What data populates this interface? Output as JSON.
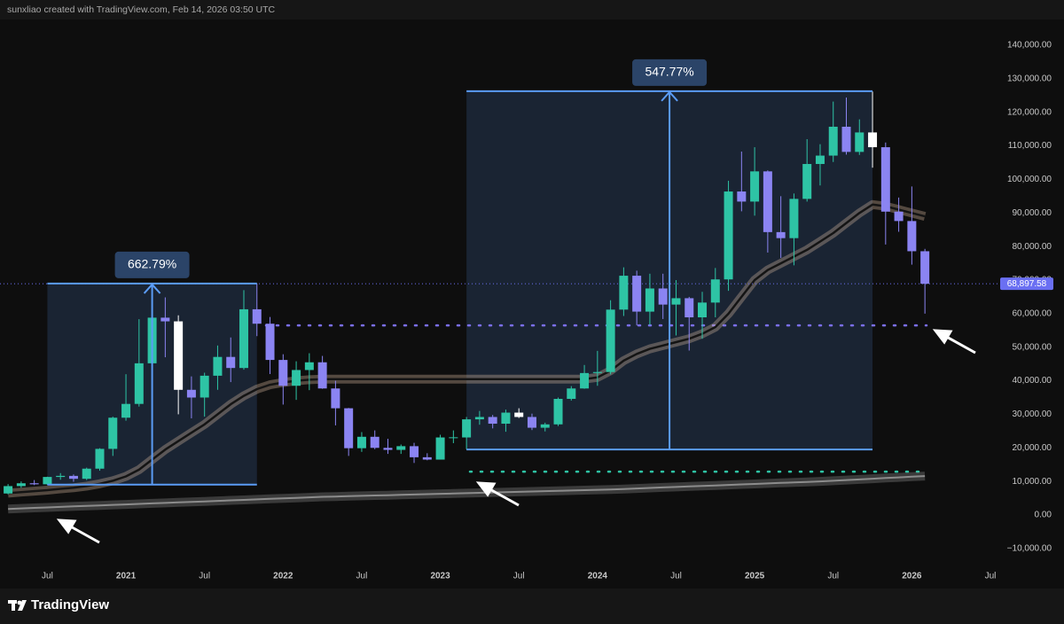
{
  "header": "sunxliao created with TradingView.com, Feb 14, 2026 03:50 UTC",
  "brand": "TradingView",
  "chart_data": {
    "type": "candlestick",
    "categories": [
      null,
      null,
      null,
      "Jul",
      null,
      null,
      null,
      null,
      null,
      "2021",
      null,
      null,
      null,
      null,
      null,
      "Jul",
      null,
      null,
      null,
      null,
      null,
      "2022",
      null,
      null,
      null,
      null,
      null,
      "Jul",
      null,
      null,
      null,
      null,
      null,
      "2023",
      null,
      null,
      null,
      null,
      null,
      "Jul",
      null,
      null,
      null,
      null,
      null,
      "2024",
      null,
      null,
      null,
      null,
      null,
      "Jul",
      null,
      null,
      null,
      null,
      null,
      "2025",
      null,
      null,
      null,
      null,
      null,
      "Jul",
      null,
      null,
      null,
      null,
      null,
      "2026",
      null,
      null,
      null,
      null,
      null,
      "Jul"
    ],
    "open": [
      6400,
      8600,
      9450,
      9140,
      11330,
      11650,
      10780,
      13800,
      19700,
      28990,
      33100,
      45200,
      58800,
      57700,
      37300,
      35000,
      41500,
      47100,
      43800,
      61300,
      57000,
      46200,
      38500,
      43200,
      45500,
      37700,
      31800,
      19900,
      23300,
      20000,
      19400,
      20500,
      17200,
      16500,
      23100,
      23100,
      28500,
      29200,
      27200,
      30500,
      29200,
      26000,
      27000,
      34600,
      37700,
      42300,
      42600,
      61200,
      71300,
      60600,
      67500,
      62700,
      64600,
      58900,
      63300,
      70200,
      96400,
      93400,
      102400,
      84300,
      82500,
      94200,
      104600,
      107100,
      115700,
      108200,
      114000,
      109600,
      90400,
      87600,
      78600,
      null,
      null,
      null,
      null,
      null
    ],
    "high": [
      9200,
      10000,
      10400,
      11400,
      12470,
      12070,
      14100,
      19900,
      29300,
      41950,
      58350,
      61800,
      64850,
      59500,
      41300,
      42400,
      50500,
      52900,
      67000,
      69000,
      59000,
      47900,
      45800,
      48200,
      47400,
      40000,
      31900,
      24700,
      25200,
      22700,
      21000,
      21500,
      18400,
      23900,
      25200,
      29200,
      31000,
      29800,
      31400,
      31800,
      30200,
      27500,
      35000,
      38400,
      44700,
      48900,
      64000,
      73800,
      72800,
      71900,
      71900,
      70000,
      65000,
      66500,
      73600,
      99600,
      108300,
      109600,
      102700,
      95000,
      95800,
      112000,
      110500,
      123200,
      124400,
      117900,
      126200,
      111000,
      94600,
      97900,
      79300,
      null,
      null,
      null,
      null,
      null
    ],
    "low": [
      6150,
      8100,
      8900,
      8950,
      10500,
      9900,
      10400,
      13200,
      17600,
      28100,
      32300,
      45000,
      47000,
      30000,
      28800,
      29300,
      37300,
      39600,
      43300,
      53300,
      42000,
      32900,
      34300,
      37200,
      37600,
      26700,
      17600,
      18800,
      19600,
      18200,
      18200,
      15500,
      16300,
      16500,
      21400,
      19600,
      26900,
      25800,
      24800,
      28900,
      25300,
      24900,
      26500,
      34100,
      37600,
      38500,
      41900,
      59300,
      56500,
      56600,
      58400,
      53500,
      49000,
      52500,
      58900,
      66800,
      90500,
      89200,
      78200,
      76600,
      74400,
      93400,
      98200,
      105200,
      107400,
      107300,
      103500,
      80600,
      84400,
      74600,
      60000,
      null,
      null,
      null,
      null,
      null
    ],
    "close": [
      8600,
      9450,
      9140,
      11330,
      11650,
      10780,
      13800,
      19700,
      28990,
      33100,
      45200,
      58800,
      57700,
      37300,
      35000,
      41500,
      47100,
      43800,
      61300,
      57000,
      46200,
      38500,
      43200,
      45500,
      37700,
      31800,
      19900,
      23300,
      20000,
      19400,
      20500,
      17200,
      16500,
      23100,
      23150,
      28500,
      29200,
      27200,
      30500,
      29200,
      26000,
      27000,
      34600,
      37700,
      42300,
      42600,
      61200,
      71300,
      60600,
      67500,
      62700,
      64600,
      58900,
      63300,
      70200,
      96400,
      93400,
      102400,
      84300,
      82500,
      94200,
      104600,
      107100,
      115700,
      108200,
      114000,
      109600,
      90400,
      87600,
      78600,
      68898,
      null,
      null,
      null,
      null,
      null
    ],
    "colors": [
      "#2ec4a5",
      "#2ec4a5",
      "#8b84f2",
      "#2ec4a5",
      "#2ec4a5",
      "#8b84f2",
      "#2ec4a5",
      "#2ec4a5",
      "#2ec4a5",
      "#2ec4a5",
      "#2ec4a5",
      "#2ec4a5",
      "#8b84f2",
      "#ffffff",
      "#8b84f2",
      "#2ec4a5",
      "#2ec4a5",
      "#8b84f2",
      "#2ec4a5",
      "#8b84f2",
      "#8b84f2",
      "#8b84f2",
      "#2ec4a5",
      "#2ec4a5",
      "#8b84f2",
      "#8b84f2",
      "#8b84f2",
      "#2ec4a5",
      "#8b84f2",
      "#8b84f2",
      "#2ec4a5",
      "#8b84f2",
      "#8b84f2",
      "#2ec4a5",
      "#2ec4a5",
      "#2ec4a5",
      "#2ec4a5",
      "#8b84f2",
      "#2ec4a5",
      "#ffffff",
      "#8b84f2",
      "#2ec4a5",
      "#2ec4a5",
      "#2ec4a5",
      "#2ec4a5",
      "#2ec4a5",
      "#2ec4a5",
      "#2ec4a5",
      "#8b84f2",
      "#2ec4a5",
      "#8b84f2",
      "#2ec4a5",
      "#8b84f2",
      "#2ec4a5",
      "#2ec4a5",
      "#2ec4a5",
      "#8b84f2",
      "#2ec4a5",
      "#8b84f2",
      "#8b84f2",
      "#2ec4a5",
      "#2ec4a5",
      "#2ec4a5",
      "#2ec4a5",
      "#8b84f2",
      "#2ec4a5",
      "#ffffff",
      "#8b84f2",
      "#8b84f2",
      "#8b84f2",
      "#8b84f2",
      null,
      null,
      null,
      null,
      null
    ],
    "lines": [
      {
        "color": "#d8b89e",
        "values": [
          6500,
          6800,
          7100,
          7400,
          7800,
          8100,
          8600,
          9300,
          10200,
          11500,
          13500,
          16500,
          19500,
          22000,
          24500,
          27000,
          30000,
          33000,
          35500,
          37500,
          38800,
          39500,
          40000,
          40300,
          40500,
          40500,
          40500,
          40500,
          40500,
          40500,
          40500,
          40500,
          40500,
          40500,
          40500,
          40500,
          40500,
          40500,
          40500,
          40500,
          40500,
          40500,
          40500,
          40500,
          40500,
          41000,
          43000,
          46000,
          48000,
          49500,
          50500,
          51500,
          52500,
          54000,
          56000,
          60000,
          65000,
          70000,
          73000,
          75000,
          77000,
          79000,
          81500,
          84000,
          87000,
          90000,
          92500,
          92000,
          91000,
          90000,
          89000,
          null,
          null,
          null,
          null,
          null
        ]
      },
      {
        "color": "#8c8c8c",
        "values": [
          1800,
          1950,
          2100,
          2250,
          2400,
          2550,
          2700,
          2850,
          3000,
          3150,
          3300,
          3450,
          3600,
          3750,
          3900,
          4050,
          4200,
          4350,
          4500,
          4650,
          4800,
          4950,
          5100,
          5250,
          5400,
          5500,
          5600,
          5700,
          5800,
          5900,
          6000,
          6100,
          6200,
          6300,
          6400,
          6500,
          6600,
          6700,
          6800,
          6900,
          7000,
          7100,
          7200,
          7300,
          7400,
          7500,
          7600,
          7750,
          7900,
          8050,
          8200,
          8350,
          8500,
          8650,
          8800,
          8950,
          9100,
          9250,
          9400,
          9550,
          9700,
          9850,
          10000,
          10200,
          10400,
          10600,
          10800,
          11000,
          11200,
          11400,
          11600,
          null,
          null,
          null,
          null,
          null
        ]
      }
    ],
    "levels": [
      {
        "value": 56500,
        "color": "#7b6ff0"
      },
      {
        "value": 12900,
        "color": "#2ec4a5"
      }
    ],
    "measures": [
      {
        "label": "662.79%",
        "low": 9040,
        "high": 68960,
        "color": "#5b9cf6"
      },
      {
        "label": "547.77%",
        "low": 19500,
        "high": 126300,
        "color": "#5b9cf6"
      }
    ],
    "last_price": {
      "value": 68897.58,
      "label": "68,897.58",
      "color": "#6a6ff2"
    },
    "ylim": [
      -19550,
      147660
    ],
    "yticks": [
      {
        "value": 140000,
        "label": "140,000.00"
      },
      {
        "value": 130000,
        "label": "130,000.00"
      },
      {
        "value": 120000,
        "label": "120,000.00"
      },
      {
        "value": 110000,
        "label": "110,000.00"
      },
      {
        "value": 100000,
        "label": "100,000.00"
      },
      {
        "value": 90000,
        "label": "90,000.00"
      },
      {
        "value": 80000,
        "label": "80,000.00"
      },
      {
        "value": 70000,
        "label": "70,000.00"
      },
      {
        "value": 60000,
        "label": "60,000.00"
      },
      {
        "value": 50000,
        "label": "50,000.00"
      },
      {
        "value": 40000,
        "label": "40,000.00"
      },
      {
        "value": 30000,
        "label": "30,000.00"
      },
      {
        "value": 20000,
        "label": "20,000.00"
      },
      {
        "value": 10000,
        "label": "10,000.00"
      },
      {
        "value": 0,
        "label": "0.00"
      },
      {
        "value": -10000,
        "label": "−10,000.00"
      }
    ],
    "grid": false
  }
}
